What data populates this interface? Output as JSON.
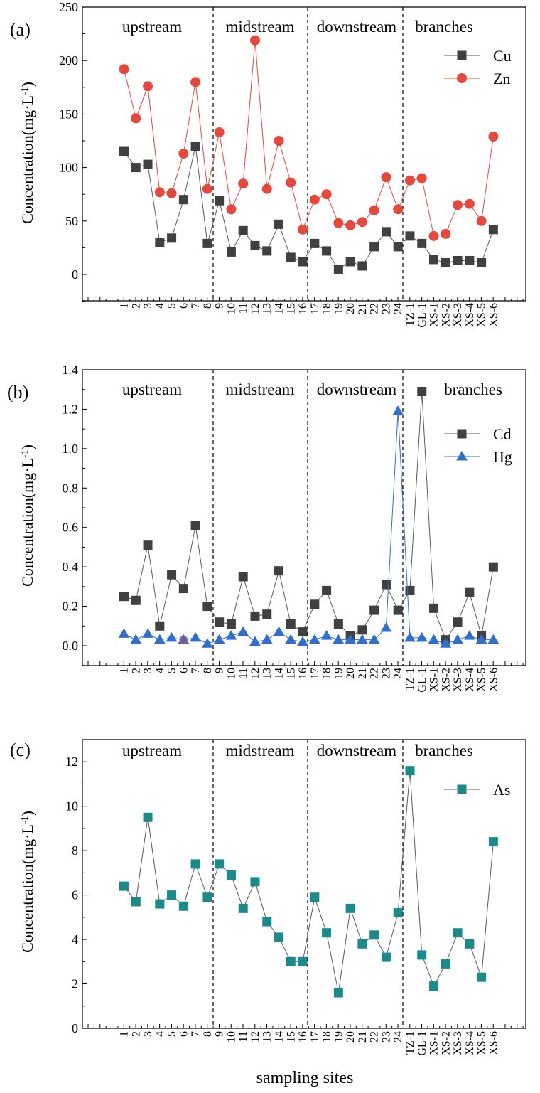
{
  "xlabel": "sampling sites",
  "sites": [
    "1",
    "2",
    "3",
    "4",
    "5",
    "6",
    "7",
    "8",
    "9",
    "10",
    "11",
    "12",
    "13",
    "14",
    "15",
    "16",
    "17",
    "18",
    "19",
    "20",
    "21",
    "22",
    "23",
    "24",
    "TZ-1",
    "GL-1",
    "XS-1",
    "XS-2",
    "XS-3",
    "XS-4",
    "XS-5",
    "XS-6"
  ],
  "regions": [
    "upstream",
    "midstream",
    "downstream",
    "branches"
  ],
  "chart_data": [
    {
      "type": "line",
      "panel": "(a)",
      "ylabel": "Concentration(mg·L-1)",
      "ylim": [
        -25,
        250
      ],
      "yticks": [
        0,
        50,
        100,
        150,
        200,
        250
      ],
      "legend_position": "top-right",
      "series": [
        {
          "name": "Cu",
          "marker": "square",
          "color": "#404040",
          "values": [
            115,
            100,
            103,
            30,
            34,
            70,
            120,
            29,
            69,
            21,
            41,
            27,
            22,
            47,
            16,
            12,
            29,
            22,
            5,
            12,
            8,
            26,
            40,
            26,
            36,
            29,
            14,
            11,
            13,
            13,
            11,
            42
          ]
        },
        {
          "name": "Zn",
          "marker": "circle",
          "color": "#e8473c",
          "values": [
            192,
            146,
            176,
            77,
            76,
            113,
            180,
            80,
            133,
            61,
            85,
            219,
            80,
            125,
            86,
            42,
            70,
            75,
            48,
            46,
            49,
            60,
            91,
            61,
            88,
            90,
            36,
            38,
            65,
            66,
            50,
            129
          ]
        }
      ]
    },
    {
      "type": "line",
      "panel": "(b)",
      "ylabel": "Concentration(mg·L-1)",
      "ylim": [
        -0.1,
        1.4
      ],
      "yticks": [
        0.0,
        0.2,
        0.4,
        0.6,
        0.8,
        1.0,
        1.2,
        1.4
      ],
      "legend_position": "top-right",
      "series": [
        {
          "name": "Cd",
          "marker": "square",
          "color": "#404040",
          "values": [
            0.25,
            0.23,
            0.51,
            0.1,
            0.36,
            0.29,
            0.61,
            0.2,
            0.12,
            0.11,
            0.35,
            0.15,
            0.16,
            0.38,
            0.11,
            0.07,
            0.21,
            0.28,
            0.11,
            0.05,
            0.08,
            0.18,
            0.31,
            0.18,
            0.28,
            1.29,
            0.19,
            0.03,
            0.12,
            0.27,
            0.05,
            0.4
          ]
        },
        {
          "name": "Hg",
          "marker": "triangle",
          "color": "#2f6fd0",
          "values": [
            0.06,
            0.03,
            0.06,
            0.03,
            0.04,
            0.03,
            0.04,
            0.01,
            0.03,
            0.05,
            0.07,
            0.02,
            0.03,
            0.07,
            0.03,
            0.02,
            0.03,
            0.05,
            0.03,
            0.03,
            0.03,
            0.03,
            0.09,
            1.19,
            0.04,
            0.04,
            0.03,
            0.01,
            0.03,
            0.05,
            0.03,
            0.03
          ]
        }
      ]
    },
    {
      "type": "line",
      "panel": "(c)",
      "ylabel": "Concentration(mg·L-1)",
      "ylim": [
        0,
        13
      ],
      "yticks": [
        0,
        2,
        4,
        6,
        8,
        10,
        12
      ],
      "legend_position": "top-right",
      "series": [
        {
          "name": "As",
          "marker": "square",
          "color": "#1a8b8b",
          "values": [
            6.4,
            5.7,
            9.5,
            5.6,
            6.0,
            5.5,
            7.4,
            5.9,
            7.4,
            6.9,
            5.4,
            6.6,
            4.8,
            4.1,
            3.0,
            3.0,
            5.9,
            4.3,
            1.6,
            5.4,
            3.8,
            4.2,
            3.2,
            5.2,
            11.6,
            3.3,
            1.9,
            2.9,
            4.3,
            3.8,
            2.3,
            8.4
          ]
        }
      ]
    }
  ]
}
